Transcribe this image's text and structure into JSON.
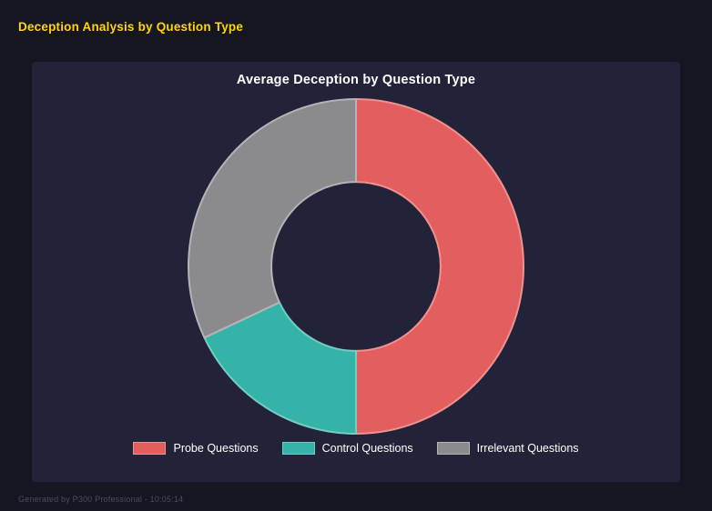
{
  "page": {
    "title": "Deception Analysis by Question Type",
    "title_color": "#ffd700",
    "background_color": "#161623",
    "panel_color": "#222238",
    "footer": "Generated by P300 Professional - 10:05:14"
  },
  "chart_data": {
    "type": "pie",
    "subtype": "donut",
    "title": "Average Deception by Question Type",
    "labels": [
      "Probe Questions",
      "Control Questions",
      "Irrelevant Questions"
    ],
    "values_percent": [
      50,
      18,
      32
    ],
    "colors": [
      "#e35f5f",
      "#36b3a8",
      "#8b8b8e"
    ],
    "border_colors": [
      "#f0918f",
      "#74ccc3",
      "#b4b4b8"
    ],
    "donut_hole_ratio": 0.505,
    "start_angle_deg": 0,
    "direction": "clockwise",
    "legend_position": "bottom",
    "title_color": "#ffffff",
    "legend_text_color": "#ffffff"
  }
}
